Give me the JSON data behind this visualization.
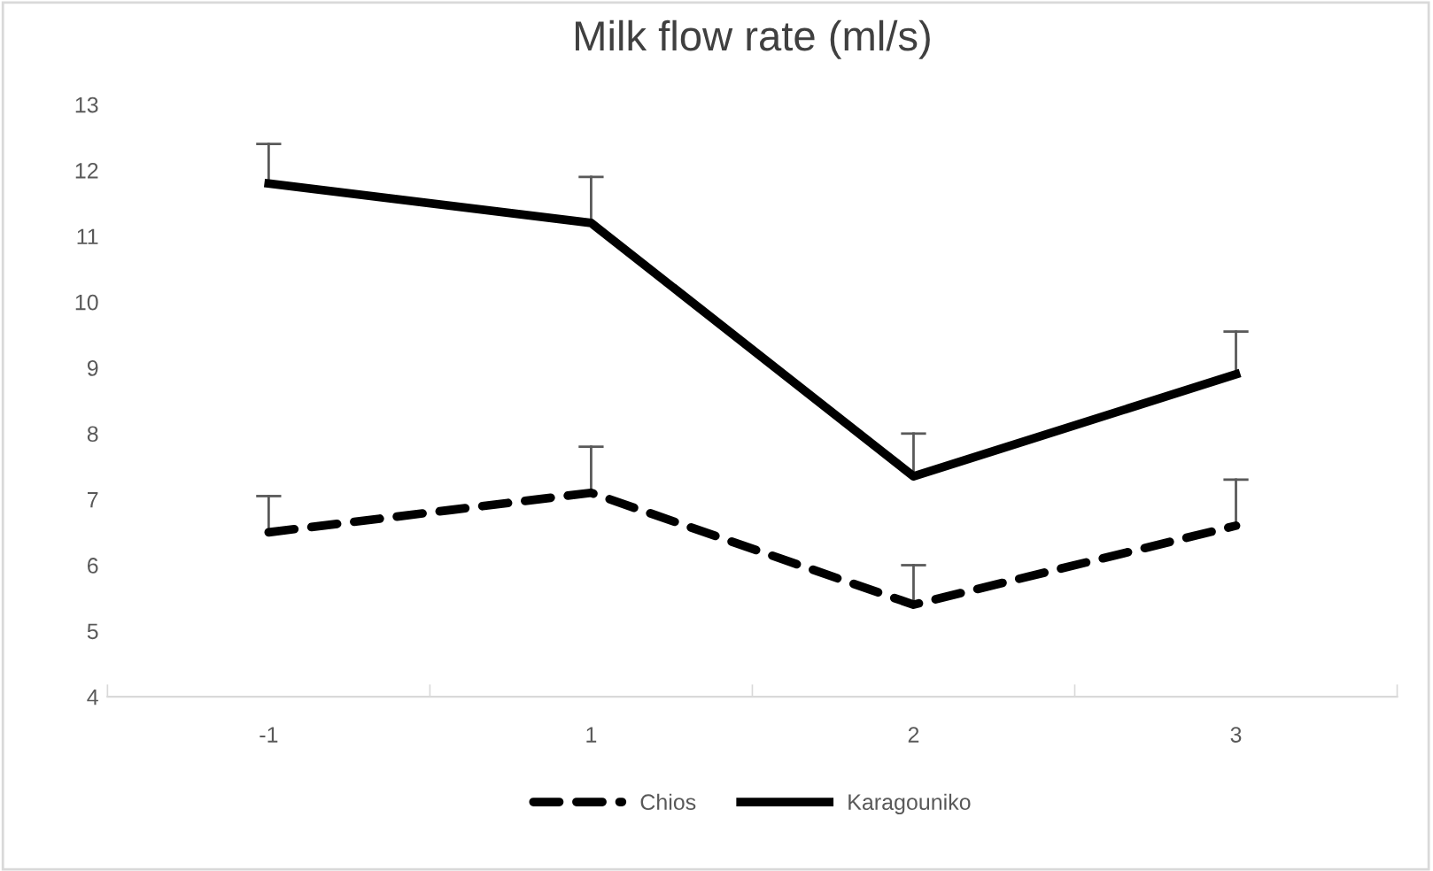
{
  "chart_data": {
    "type": "line",
    "title": "Milk flow rate (ml/s)",
    "categories": [
      "-1",
      "1",
      "2",
      "3"
    ],
    "series": [
      {
        "name": "Chios",
        "color": "#000000",
        "line_style": "dashed",
        "values": [
          6.5,
          7.1,
          5.4,
          6.6
        ],
        "errors": [
          [
            6.5,
            7.05
          ],
          [
            7.1,
            7.8
          ],
          [
            5.4,
            6.0
          ],
          [
            6.6,
            7.3
          ]
        ]
      },
      {
        "name": "Karagouniko",
        "color": "#000000",
        "line_style": "solid",
        "values": [
          11.8,
          11.2,
          7.35,
          8.9
        ],
        "errors": [
          [
            11.8,
            12.4
          ],
          [
            11.2,
            11.9
          ],
          [
            7.35,
            8.0
          ],
          [
            8.9,
            9.55
          ]
        ]
      }
    ],
    "ylim": [
      4,
      13
    ],
    "yticks": [
      4,
      5,
      6,
      7,
      8,
      9,
      10,
      11,
      12,
      13
    ],
    "grid": false,
    "legend": "bottom",
    "marker": "none"
  }
}
